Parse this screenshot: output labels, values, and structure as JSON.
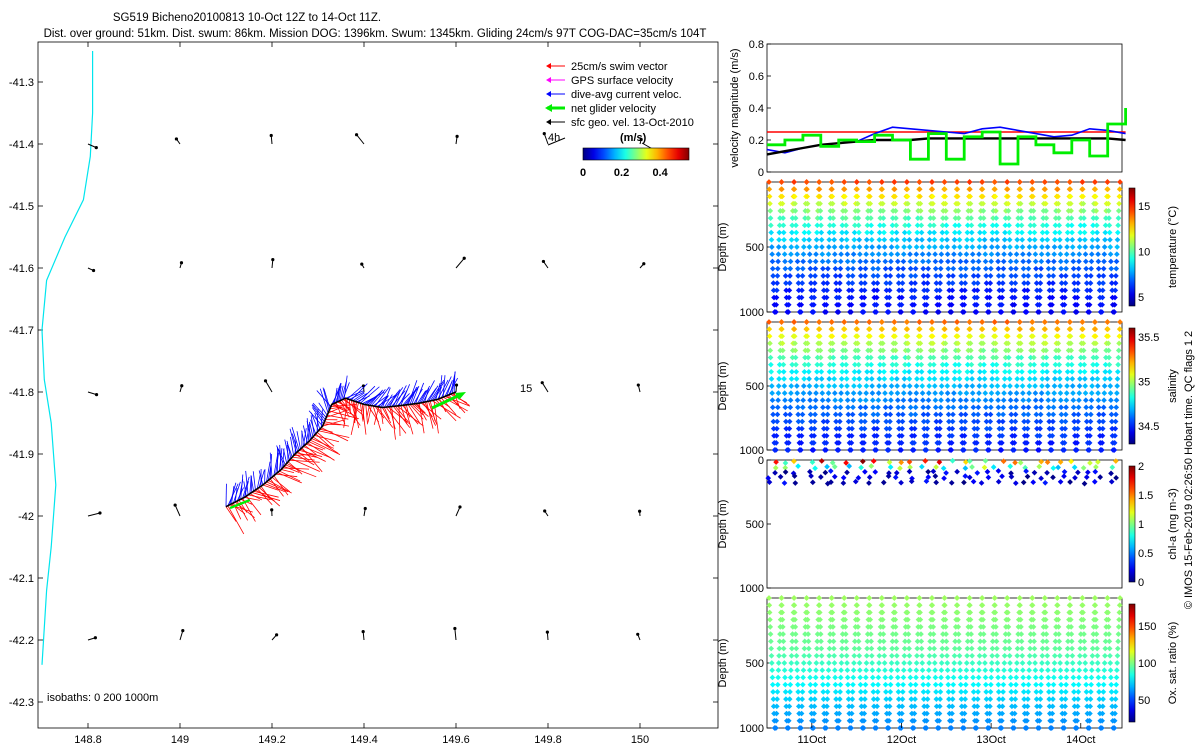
{
  "title": {
    "line1": "SG519 Bicheno20100813 10-Oct 12Z to 14-Oct 11Z.",
    "line2": "Dist. over ground: 51km. Dist. swum: 86km. Mission DOG: 1396km. Swum: 1345km. Gliding 24cm/s 97T COG-DAC=35cm/s 104T"
  },
  "credit": "© IMOS 15-Feb-2019 02:26:50 Hobart time. QC flags 1  2",
  "colors": {
    "swim": "#ff0000",
    "gps": "#ff00ff",
    "dac": "#0000ff",
    "net": "#00ee00",
    "geo": "#000000",
    "isobath": "#00e5ee",
    "velocity_ref": "#ff0000",
    "velocity_smooth": "#0000ff",
    "velocity_geo": "#000000"
  },
  "chart_data": [
    {
      "type": "scatter",
      "name": "map",
      "title": "",
      "xlabel": "",
      "ylabel": "",
      "xlim": [
        148.7,
        150.15
      ],
      "ylim": [
        -42.3,
        -41.25
      ],
      "x_ticks": [
        "148.8",
        "149",
        "149.2",
        "149.4",
        "149.6",
        "149.8",
        "150"
      ],
      "y_ticks": [
        "-41.3",
        "-41.4",
        "-41.5",
        "-41.6",
        "-41.7",
        "-41.8",
        "-41.9",
        "-42",
        "-42.1",
        "-42.2",
        "-42.3"
      ],
      "legend": [
        {
          "label": "25cm/s swim vector",
          "color": "#ff0000"
        },
        {
          "label": "GPS surface velocity",
          "color": "#ff00ff"
        },
        {
          "label": "dive-avg current veloc.",
          "color": "#0000ff"
        },
        {
          "label": "net glider velocity",
          "color": "#00ee00"
        },
        {
          "label": "sfc geo. vel. 13-Oct-2010",
          "color": "#000000"
        }
      ],
      "legend_position": "top-right",
      "colorbar": {
        "label": "(m/s)",
        "ticks": [
          "0",
          "0.2",
          "0.4"
        ],
        "range": [
          0,
          0.55
        ]
      },
      "annotations": [
        "4h",
        "15"
      ],
      "isobath_label": "isobaths: 0   200  1000m",
      "geo_arrow_lons": [
        148.8,
        149.0,
        149.2,
        149.4,
        149.6,
        149.8,
        150.0
      ],
      "geo_arrow_lats": [
        -41.4,
        -41.6,
        -41.8,
        -42.0,
        -42.2
      ],
      "track": {
        "lon": [
          149.1,
          149.14,
          149.18,
          149.22,
          149.25,
          149.28,
          149.31,
          149.33,
          149.36,
          149.4,
          149.44,
          149.48,
          149.52,
          149.56,
          149.6
        ],
        "lat": [
          -41.985,
          -41.97,
          -41.95,
          -41.925,
          -41.9,
          -41.88,
          -41.855,
          -41.82,
          -41.81,
          -41.82,
          -41.825,
          -41.822,
          -41.818,
          -41.812,
          -41.8
        ]
      },
      "isobath_0m": {
        "lon": [
          148.81,
          148.81,
          148.805,
          148.79,
          148.75,
          148.71,
          148.7,
          148.705,
          148.72,
          148.73,
          148.72,
          148.71,
          148.705,
          148.7
        ],
        "lat": [
          -41.25,
          -41.35,
          -41.42,
          -41.49,
          -41.55,
          -41.62,
          -41.7,
          -41.78,
          -41.85,
          -41.95,
          -42.05,
          -42.12,
          -42.18,
          -42.24
        ]
      }
    },
    {
      "type": "line",
      "name": "velocity",
      "xlabel": "",
      "ylabel": "velocity magnitude (m/s)",
      "ylim": [
        0,
        0.8
      ],
      "y_ticks": [
        "0",
        "0.2",
        "0.4",
        "0.6",
        "0.8"
      ],
      "x": [
        10.5,
        10.7,
        10.9,
        11.1,
        11.3,
        11.5,
        11.7,
        11.9,
        12.1,
        12.3,
        12.5,
        12.7,
        12.9,
        13.1,
        13.3,
        13.5,
        13.7,
        13.9,
        14.1,
        14.3,
        14.5
      ],
      "series": [
        {
          "name": "swim reference 25cm/s",
          "color": "#ff0000",
          "values": [
            0.25,
            0.25,
            0.25,
            0.25,
            0.25,
            0.25,
            0.25,
            0.25,
            0.25,
            0.25,
            0.25,
            0.25,
            0.25,
            0.25,
            0.25,
            0.25,
            0.25,
            0.25,
            0.25,
            0.25,
            0.25
          ]
        },
        {
          "name": "dive-avg current",
          "color": "#0000ff",
          "values": [
            0.14,
            0.12,
            0.15,
            0.17,
            0.18,
            0.19,
            0.24,
            0.28,
            0.27,
            0.26,
            0.25,
            0.24,
            0.27,
            0.28,
            0.26,
            0.24,
            0.22,
            0.23,
            0.27,
            0.26,
            0.24
          ]
        },
        {
          "name": "sfc geo velocity",
          "color": "#000000",
          "values": [
            0.11,
            0.13,
            0.15,
            0.17,
            0.18,
            0.19,
            0.2,
            0.2,
            0.2,
            0.21,
            0.21,
            0.21,
            0.21,
            0.21,
            0.21,
            0.21,
            0.21,
            0.21,
            0.21,
            0.21,
            0.2
          ]
        },
        {
          "name": "net glider velocity",
          "color": "#00ee00",
          "values": [
            0.17,
            0.2,
            0.23,
            0.16,
            0.2,
            0.19,
            0.23,
            0.2,
            0.08,
            0.24,
            0.08,
            0.22,
            0.25,
            0.05,
            0.22,
            0.17,
            0.12,
            0.2,
            0.1,
            0.3,
            0.4
          ]
        }
      ]
    },
    {
      "type": "scatter",
      "name": "temperature",
      "ylabel": "Depth (m)",
      "y_ticks": [
        "500",
        "1000"
      ],
      "ylim": [
        1000,
        0
      ],
      "cycles": 28,
      "colorbar": {
        "label": "temperature (°C)",
        "ticks": [
          "5",
          "10",
          "15"
        ],
        "range": [
          4,
          17
        ]
      },
      "surface_value": 14.5,
      "bottom_value": 4.5
    },
    {
      "type": "scatter",
      "name": "salinity",
      "ylabel": "Depth (m)",
      "y_ticks": [
        "500",
        "1000"
      ],
      "ylim": [
        1000,
        0
      ],
      "cycles": 28,
      "colorbar": {
        "label": "salinity",
        "ticks": [
          "34.5",
          "35",
          "35.5"
        ],
        "range": [
          34.3,
          35.6
        ]
      },
      "surface_value": 35.3,
      "bottom_value": 34.4
    },
    {
      "type": "scatter",
      "name": "chlorophyll",
      "ylabel": "Depth (m)",
      "y_ticks": [
        "0",
        "500",
        "1000"
      ],
      "ylim": [
        1000,
        0
      ],
      "cycles": 28,
      "colorbar": {
        "label": "chl-a (mg m-3)",
        "ticks": [
          "0",
          "0.5",
          "1",
          "1.5",
          "2"
        ],
        "range": [
          0,
          2
        ]
      },
      "max_depth": 250
    },
    {
      "type": "scatter",
      "name": "oxygen",
      "ylabel": "Depth (m)",
      "y_ticks": [
        "500",
        "1000"
      ],
      "ylim": [
        1000,
        0
      ],
      "cycles": 28,
      "colorbar": {
        "label": "Ox. sat. ratio (%)",
        "ticks": [
          "50",
          "100",
          "150"
        ],
        "range": [
          20,
          180
        ]
      },
      "surface_value": 105,
      "bottom_value": 60
    }
  ],
  "time_axis": {
    "ticks": [
      "11Oct",
      "12Oct",
      "13Oct",
      "14Oct"
    ],
    "tick_days": [
      11,
      12,
      13,
      14
    ],
    "range": [
      10.5,
      14.46
    ]
  }
}
